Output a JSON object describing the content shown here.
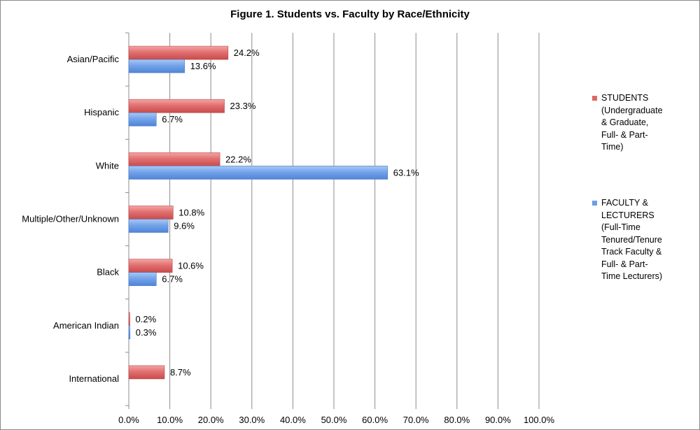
{
  "chart_data": {
    "type": "bar",
    "orientation": "horizontal",
    "title": "Figure 1. Students vs. Faculty by Race/Ethnicity",
    "categories": [
      "Asian/Pacific",
      "Hispanic",
      "White",
      "Multiple/Other/Unknown",
      "Black",
      "American Indian",
      "International"
    ],
    "series": [
      {
        "name": "STUDENTS (Undergraduate & Graduate, Full- & Part-Time)",
        "display_lines": [
          "STUDENTS",
          "(Undergraduate",
          "& Graduate,",
          "Full- & Part-",
          "Time)"
        ],
        "color": "#e06666",
        "values": [
          24.2,
          23.3,
          22.2,
          10.8,
          10.6,
          0.2,
          8.7
        ],
        "labels": [
          "24.2%",
          "23.3%",
          "22.2%",
          "10.8%",
          "10.6%",
          "0.2%",
          "8.7%"
        ]
      },
      {
        "name": "FACULTY & LECTURERS (Full-Time Tenured/Tenure Track Faculty & Full- & Part-Time Lecturers)",
        "display_lines": [
          "FACULTY &",
          "LECTURERS",
          "(Full-Time",
          "Tenured/Tenure",
          "Track Faculty &",
          "Full- & Part-",
          "Time Lecturers)"
        ],
        "color": "#6d9eeb",
        "values": [
          13.6,
          6.7,
          63.1,
          9.6,
          6.7,
          0.3,
          null
        ],
        "labels": [
          "13.6%",
          "6.7%",
          "63.1%",
          "9.6%",
          "6.7%",
          "0.3%",
          null
        ]
      }
    ],
    "x_axis": {
      "min": 0,
      "max": 100,
      "ticks": [
        0,
        10,
        20,
        30,
        40,
        50,
        60,
        70,
        80,
        90,
        100
      ],
      "tick_labels": [
        "0.0%",
        "10.0%",
        "20.0%",
        "30.0%",
        "40.0%",
        "50.0%",
        "60.0%",
        "70.0%",
        "80.0%",
        "90.0%",
        "100.0%"
      ]
    },
    "xlabel": "",
    "ylabel": "",
    "grid": true,
    "legend_position": "right"
  }
}
